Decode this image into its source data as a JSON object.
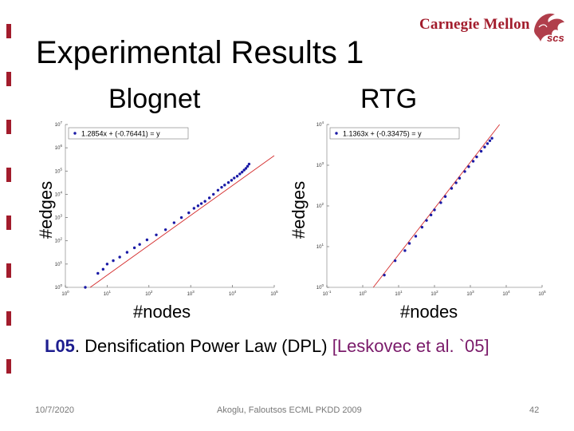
{
  "slide": {
    "title": "Experimental Results 1",
    "logo_text": "Carnegie Mellon",
    "logo_mark_text": "scs"
  },
  "citation": {
    "id": "L05",
    "text": ". Densification Power Law (DPL) ",
    "ref": "[Leskovec et al. `05]"
  },
  "footer": {
    "date": "10/7/2020",
    "center": "Akoglu, Faloutsos ECML PKDD 2009",
    "page": "42"
  },
  "colors": {
    "accent": "#a21c2c",
    "points": "#1a1aa6",
    "fit_line": "#d42a2a",
    "citation_id": "#1d1d8f",
    "citation_ref": "#7a1a6a"
  },
  "chart_data": [
    {
      "type": "scatter",
      "title": "Blognet",
      "xlabel": "#nodes",
      "ylabel": "#edges",
      "xscale": "log",
      "yscale": "log",
      "xlim": [
        1,
        100000
      ],
      "ylim": [
        1,
        10000000
      ],
      "xticks": [
        {
          "base": "10",
          "exp": "0"
        },
        {
          "base": "10",
          "exp": "1"
        },
        {
          "base": "10",
          "exp": "2"
        },
        {
          "base": "10",
          "exp": "3"
        },
        {
          "base": "10",
          "exp": "4"
        },
        {
          "base": "10",
          "exp": "5"
        }
      ],
      "yticks": [
        {
          "base": "10",
          "exp": "0"
        },
        {
          "base": "10",
          "exp": "1"
        },
        {
          "base": "10",
          "exp": "2"
        },
        {
          "base": "10",
          "exp": "3"
        },
        {
          "base": "10",
          "exp": "4"
        },
        {
          "base": "10",
          "exp": "5"
        },
        {
          "base": "10",
          "exp": "6"
        },
        {
          "base": "10",
          "exp": "7"
        }
      ],
      "legend": "1.2854x + (-0.76441) = y",
      "legend_position": "top-left",
      "fit": {
        "slope": 1.2854,
        "intercept": -0.76441
      },
      "points": [
        [
          3,
          1
        ],
        [
          6,
          4
        ],
        [
          8,
          6
        ],
        [
          10,
          10
        ],
        [
          14,
          14
        ],
        [
          20,
          20
        ],
        [
          30,
          32
        ],
        [
          45,
          50
        ],
        [
          60,
          70
        ],
        [
          90,
          110
        ],
        [
          150,
          180
        ],
        [
          250,
          300
        ],
        [
          400,
          600
        ],
        [
          600,
          1000
        ],
        [
          900,
          1600
        ],
        [
          1200,
          2500
        ],
        [
          1500,
          3200
        ],
        [
          1800,
          4000
        ],
        [
          2200,
          5000
        ],
        [
          2800,
          7000
        ],
        [
          3500,
          10000
        ],
        [
          4500,
          15000
        ],
        [
          5500,
          20000
        ],
        [
          6500,
          25000
        ],
        [
          8000,
          32000
        ],
        [
          9500,
          40000
        ],
        [
          11000,
          50000
        ],
        [
          13000,
          60000
        ],
        [
          15000,
          75000
        ],
        [
          17000,
          90000
        ],
        [
          19000,
          110000
        ],
        [
          21000,
          130000
        ],
        [
          23000,
          160000
        ],
        [
          25000,
          200000
        ]
      ]
    },
    {
      "type": "scatter",
      "title": "RTG",
      "xlabel": "#nodes",
      "ylabel": "#edges",
      "xscale": "log",
      "yscale": "log",
      "xlim": [
        0.1,
        100000
      ],
      "ylim": [
        1,
        10000
      ],
      "xticks": [
        {
          "base": "10",
          "exp": "-1"
        },
        {
          "base": "10",
          "exp": "0"
        },
        {
          "base": "10",
          "exp": "1"
        },
        {
          "base": "10",
          "exp": "2"
        },
        {
          "base": "10",
          "exp": "3"
        },
        {
          "base": "10",
          "exp": "4"
        },
        {
          "base": "10",
          "exp": "5"
        }
      ],
      "yticks": [
        {
          "base": "10",
          "exp": "0"
        },
        {
          "base": "10",
          "exp": "1"
        },
        {
          "base": "10",
          "exp": "2"
        },
        {
          "base": "10",
          "exp": "3"
        },
        {
          "base": "10",
          "exp": "4"
        }
      ],
      "legend": "1.1363x + (-0.33475) = y",
      "legend_position": "top-left",
      "fit": {
        "slope": 1.1363,
        "intercept": -0.33475
      },
      "points": [
        [
          4,
          2
        ],
        [
          8,
          4.5
        ],
        [
          15,
          8
        ],
        [
          20,
          12
        ],
        [
          30,
          18
        ],
        [
          45,
          30
        ],
        [
          60,
          44
        ],
        [
          80,
          60
        ],
        [
          100,
          80
        ],
        [
          150,
          120
        ],
        [
          200,
          170
        ],
        [
          300,
          270
        ],
        [
          400,
          370
        ],
        [
          500,
          480
        ],
        [
          700,
          700
        ],
        [
          900,
          920
        ],
        [
          1200,
          1250
        ],
        [
          1500,
          1600
        ],
        [
          2000,
          2200
        ],
        [
          2500,
          2800
        ],
        [
          3000,
          3400
        ],
        [
          3500,
          4000
        ],
        [
          4000,
          4600
        ]
      ]
    }
  ]
}
